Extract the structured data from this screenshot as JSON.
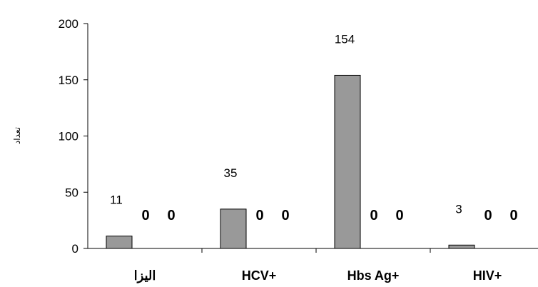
{
  "chart_data": {
    "type": "bar",
    "title": "",
    "xlabel": "",
    "ylabel": "تعداد",
    "ylim": [
      0,
      200
    ],
    "yticks": [
      0,
      50,
      100,
      150,
      200
    ],
    "categories": [
      "الیزا",
      "HCV+",
      "Hbs Ag+",
      "HIV+"
    ],
    "series": [
      {
        "values": [
          11,
          35,
          154,
          3
        ],
        "data_labels": [
          "11",
          "35",
          "154",
          "3"
        ],
        "color": "#999999"
      },
      {
        "values": [
          0,
          0,
          0,
          0
        ],
        "data_labels": [
          "0",
          "0",
          "0",
          "0"
        ]
      },
      {
        "values": [
          0,
          0,
          0,
          0
        ],
        "data_labels": [
          "0",
          "0",
          "0",
          "0"
        ]
      }
    ],
    "grid": false,
    "legend": "none"
  }
}
